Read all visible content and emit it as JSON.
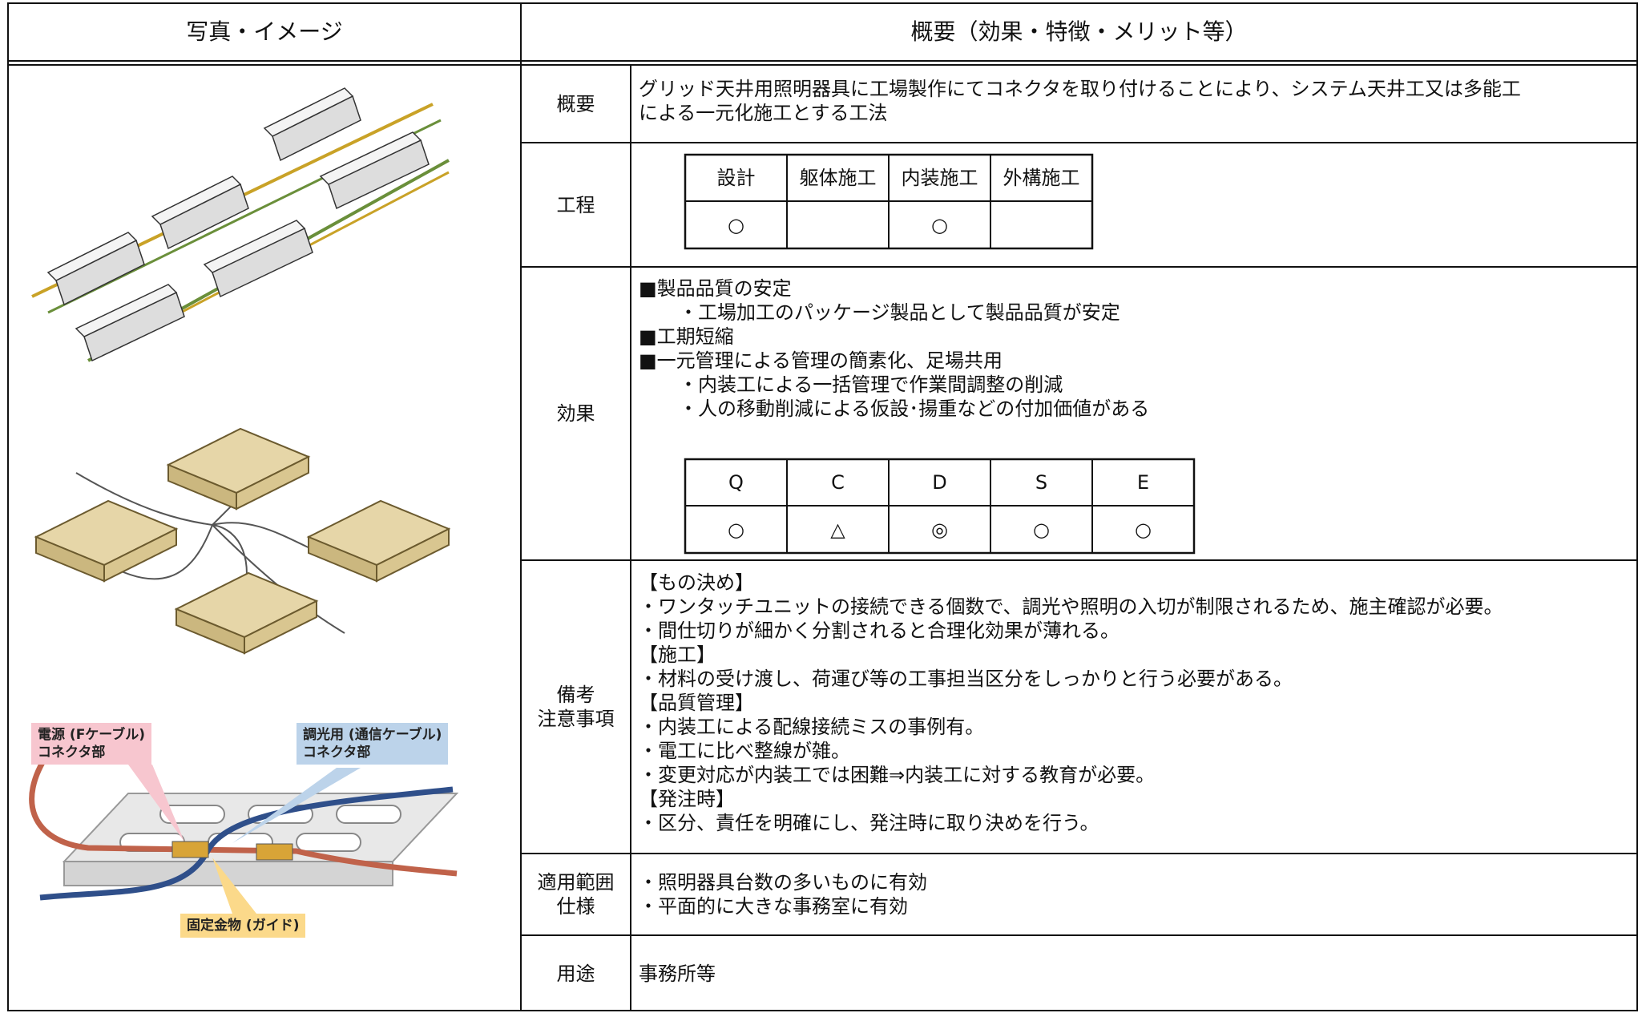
{
  "header": {
    "left": "写真・イメージ",
    "right": "概要（効果・特徴・メリット等）"
  },
  "image_labels": {
    "power": [
      "電源 (Fケーブル)",
      "コネクタ部"
    ],
    "dimming": [
      "調光用 (通信ケーブル)",
      "コネクタ部"
    ],
    "fixture": "固定金物 (ガイド)"
  },
  "overview": {
    "label": "概要",
    "lines": [
      "グリッド天井用照明器具に工場製作にてコネクタを取り付けることにより、システム天井工又は多能工",
      "による一元化施工とする工法"
    ]
  },
  "process": {
    "label": "工程",
    "headers": [
      "設計",
      "躯体施工",
      "内装施工",
      "外構施工"
    ],
    "marks": [
      "○",
      null,
      "○",
      null
    ]
  },
  "effects": {
    "label": "効果",
    "lines": [
      "■製品品質の安定",
      "・工場加工のパッケージ製品として製品品質が安定",
      "■工期短縮",
      "■一元管理による管理の簡素化、足場共用",
      "・内装工による一括管理で作業間調整の削減",
      "・人の移動削減による仮設･揚重などの付加価値がある"
    ],
    "qcdse_headers": [
      "Q",
      "C",
      "D",
      "S",
      "E"
    ],
    "qcdse_marks": [
      "○",
      "△",
      "◎",
      "○",
      "○"
    ]
  },
  "notes": {
    "label": [
      "備考",
      "注意事項"
    ],
    "lines": [
      "【もの決め】",
      "・ワンタッチユニットの接続できる個数で、調光や照明の入切が制限されるため、施主確認が必要。",
      "・間仕切りが細かく分割されると合理化効果が薄れる。",
      "【施工】",
      "・材料の受け渡し、荷運び等の工事担当区分をしっかりと行う必要がある。",
      "【品質管理】",
      "・内装工による配線接続ミスの事例有。",
      "・電工に比べ整線が雑。",
      "・変更対応が内装工では困難⇒内装工に対する教育が必要。",
      "【発注時】",
      "・区分、責任を明確にし、発注時に取り決めを行う。"
    ]
  },
  "scope": {
    "label": [
      "適用範囲",
      "仕様"
    ],
    "lines": [
      "・照明器具台数の多いものに有効",
      "・平面的に大きな事務室に有効"
    ]
  },
  "use": {
    "label": "用途",
    "text": "事務所等"
  }
}
